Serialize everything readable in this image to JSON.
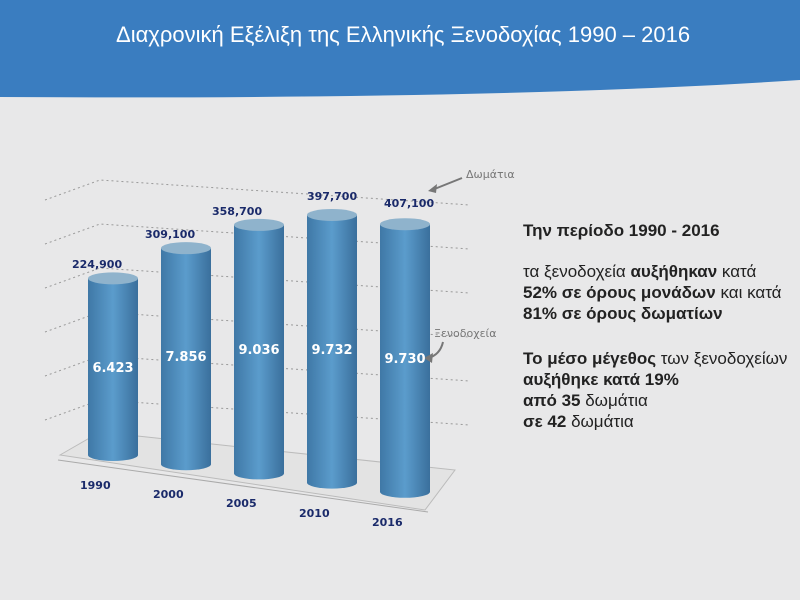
{
  "title": "Διαχρονική Εξέλιξη της  Ελληνικής Ξενοδοχίας 1990 – 2016",
  "colors": {
    "header": "#3a7dc0",
    "bar": "#4f8fc0",
    "label": "#1a2a6a"
  },
  "chart_data": {
    "type": "bar",
    "categories": [
      "1990",
      "2000",
      "2005",
      "2010",
      "2016"
    ],
    "series": [
      {
        "name": "Ξενοδοχεία",
        "values": [
          6423,
          7856,
          9036,
          9732,
          9730
        ],
        "labels": [
          "6.423",
          "7.856",
          "9.036",
          "9.732",
          "9.730"
        ]
      },
      {
        "name": "Δωμάτια",
        "values": [
          224900,
          309100,
          358700,
          397700,
          407100
        ],
        "labels": [
          "224,900",
          "309,100",
          "358,700",
          "397,700",
          "407,100"
        ]
      }
    ],
    "annotations": {
      "rooms": "Δωμάτια",
      "hotels": "Ξενοδοχεία"
    }
  },
  "text": {
    "heading": "Την περίοδο 1990 - 2016",
    "p1": [
      "τα ξενοδοχεία ",
      "αυξήθηκαν",
      " κατά ",
      "52% σε όρους μονάδων",
      " και κατά ",
      "81% σε όρους δωματίων"
    ],
    "p2": [
      "Το μέσο μέγεθος",
      " των ξενοδοχείων ",
      "αυξήθηκε κατά 19%",
      " ",
      "από 35",
      " δωμάτια ",
      "σε 42",
      " δωμάτια"
    ]
  }
}
